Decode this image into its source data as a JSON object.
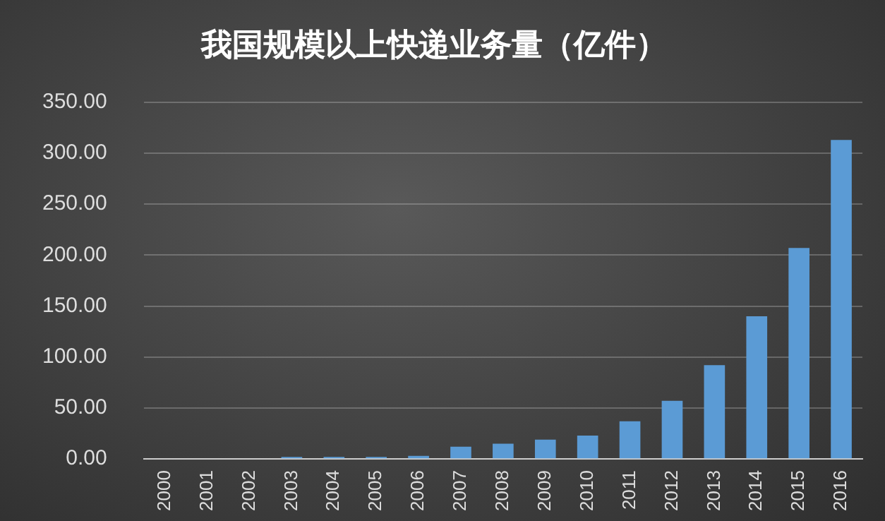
{
  "chart_data": {
    "type": "bar",
    "title": "我国规模以上快递业务量（亿件）",
    "categories": [
      "2000",
      "2001",
      "2002",
      "2003",
      "2004",
      "2005",
      "2006",
      "2007",
      "2008",
      "2009",
      "2010",
      "2011",
      "2012",
      "2013",
      "2014",
      "2015",
      "2016"
    ],
    "values": [
      null,
      null,
      null,
      2,
      2,
      2,
      3,
      12,
      15,
      19,
      23,
      37,
      57,
      92,
      140,
      207,
      313
    ],
    "color": "#5b9bd5",
    "ylim": [
      0,
      350
    ],
    "yticks": [
      {
        "value": 0,
        "label": "0.00"
      },
      {
        "value": 50,
        "label": "50.00"
      },
      {
        "value": 100,
        "label": "100.00"
      },
      {
        "value": 150,
        "label": "150.00"
      },
      {
        "value": 200,
        "label": "200.00"
      },
      {
        "value": 250,
        "label": "250.00"
      },
      {
        "value": 300,
        "label": "300.00"
      },
      {
        "value": 350,
        "label": "350.00"
      }
    ],
    "grid": "y"
  }
}
